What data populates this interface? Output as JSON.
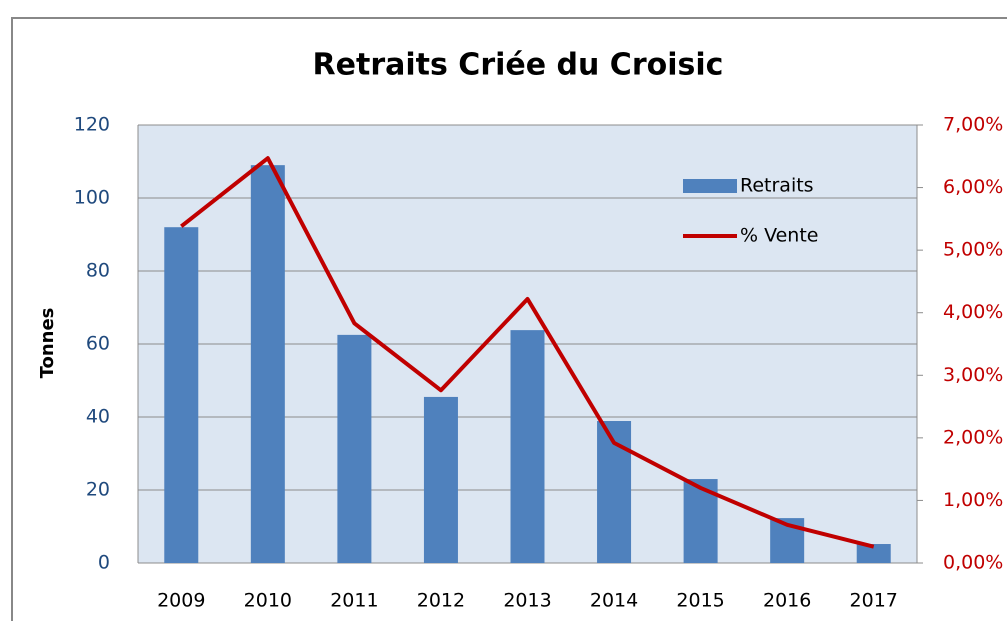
{
  "chart_data": {
    "type": "bar_line",
    "title": "Retraits  Criée du Croisic",
    "y_label": "Tonnes",
    "categories": [
      "2009",
      "2010",
      "2011",
      "2012",
      "2013",
      "2014",
      "2015",
      "2016",
      "2017"
    ],
    "series": [
      {
        "name": "Retraits",
        "type": "bar",
        "color": "#4f81bd",
        "values": [
          92,
          109,
          62.5,
          45.5,
          63.8,
          38.9,
          23,
          12.3,
          5.2
        ]
      },
      {
        "name": "% Vente",
        "type": "line",
        "axis": "y2",
        "color": "#c00000",
        "values": [
          5.38,
          6.47,
          3.83,
          2.76,
          4.22,
          1.92,
          1.2,
          0.61,
          0.26
        ]
      }
    ],
    "ylim": [
      0,
      120
    ],
    "yticks": [
      0,
      20,
      40,
      60,
      80,
      100,
      120
    ],
    "y2lim": [
      0,
      7
    ],
    "y2ticks": [
      {
        "value": 0,
        "label": "0,00%"
      },
      {
        "value": 1,
        "label": "1,00%"
      },
      {
        "value": 2,
        "label": "2,00%"
      },
      {
        "value": 3,
        "label": "3,00%"
      },
      {
        "value": 4,
        "label": "4,00%"
      },
      {
        "value": 5,
        "label": "5,00%"
      },
      {
        "value": 6,
        "label": "6,00%"
      },
      {
        "value": 7,
        "label": "7,00%"
      }
    ],
    "grid": true,
    "legend": "upper right"
  }
}
